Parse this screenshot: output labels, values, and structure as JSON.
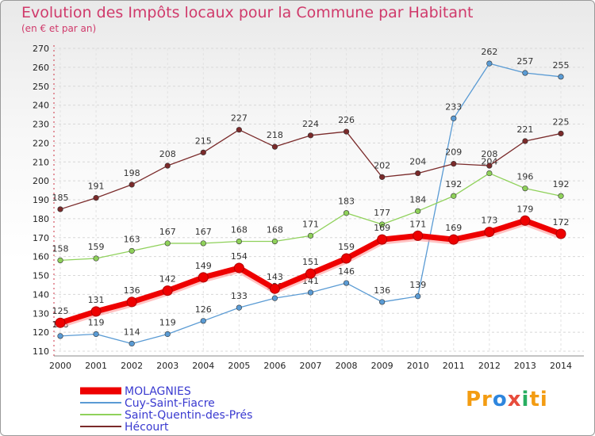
{
  "title": "Evolution des Impôts locaux pour la Commune par Habitant",
  "subtitle": "(en € et par an)",
  "brand": {
    "parts": [
      "Pr",
      "o",
      "x",
      "i",
      "ti"
    ],
    "colors": [
      "#f39c12",
      "#2e86de",
      "#e74c3c",
      "#27ae60",
      "#f39c12"
    ]
  },
  "chart_data": {
    "type": "line",
    "x": [
      "2000",
      "2001",
      "2002",
      "2003",
      "2004",
      "2005",
      "2006",
      "2007",
      "2008",
      "2009",
      "2010",
      "2011",
      "2012",
      "2013",
      "2014"
    ],
    "ylim": [
      110,
      270
    ],
    "yticks": [
      110,
      120,
      130,
      140,
      150,
      160,
      170,
      180,
      190,
      200,
      210,
      220,
      230,
      240,
      250,
      260,
      270
    ],
    "grid": true,
    "legend_position": "bottom-left",
    "series": [
      {
        "name": "MOLAGNIES",
        "color": "#ee0000",
        "values": [
          125,
          131,
          136,
          142,
          149,
          154,
          143,
          151,
          159,
          169,
          171,
          169,
          173,
          179,
          172
        ]
      },
      {
        "name": "Cuy-Saint-Fiacre",
        "color": "#5a9bd4",
        "values": [
          118,
          119,
          114,
          119,
          126,
          133,
          138,
          141,
          146,
          136,
          139,
          233,
          262,
          257,
          255
        ]
      },
      {
        "name": "Saint-Quentin-des-Prés",
        "color": "#8fd15a",
        "values": [
          158,
          159,
          163,
          167,
          167,
          168,
          168,
          171,
          183,
          177,
          184,
          192,
          204,
          196,
          192
        ]
      },
      {
        "name": "Hécourt",
        "color": "#7a2a2a",
        "values": [
          185,
          191,
          198,
          208,
          215,
          227,
          218,
          224,
          226,
          202,
          204,
          209,
          208,
          221,
          225
        ]
      }
    ]
  }
}
